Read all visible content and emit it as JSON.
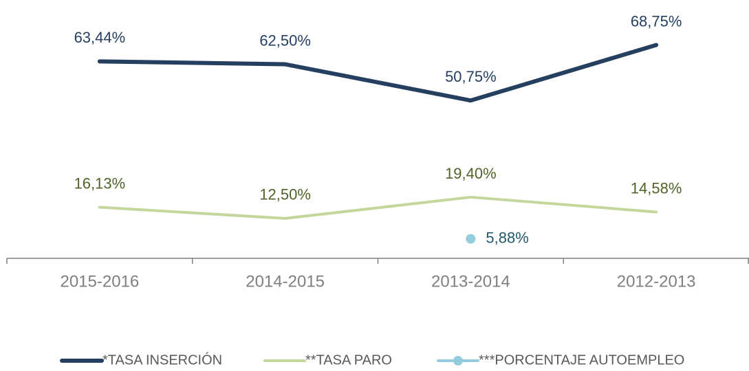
{
  "chart_data": {
    "type": "line",
    "categories": [
      "2015-2016",
      "2014-2015",
      "2013-2014",
      "2012-2013"
    ],
    "ylim": [
      0,
      80
    ],
    "series": [
      {
        "name": "*TASA INSERCIÓN",
        "color": "#243f60",
        "label_color": "#243f60",
        "values": [
          63.44,
          62.5,
          50.75,
          68.75
        ],
        "value_labels": [
          "63,44%",
          "62,50%",
          "50,75%",
          "68,75%"
        ]
      },
      {
        "name": "**TASA PARO",
        "color": "#c3d69b",
        "label_color": "#4f6228",
        "values": [
          16.13,
          12.5,
          19.4,
          14.58
        ],
        "value_labels": [
          "16,13%",
          "12,50%",
          "19,40%",
          "14,58%"
        ]
      },
      {
        "name": "***PORCENTAJE AUTOEMPLEO",
        "color": "#93cddd",
        "label_color": "#215968",
        "marker": true,
        "values": [
          null,
          null,
          5.88,
          null
        ],
        "value_labels": [
          null,
          null,
          "5,88%",
          null
        ]
      }
    ],
    "legend": "bottom"
  }
}
